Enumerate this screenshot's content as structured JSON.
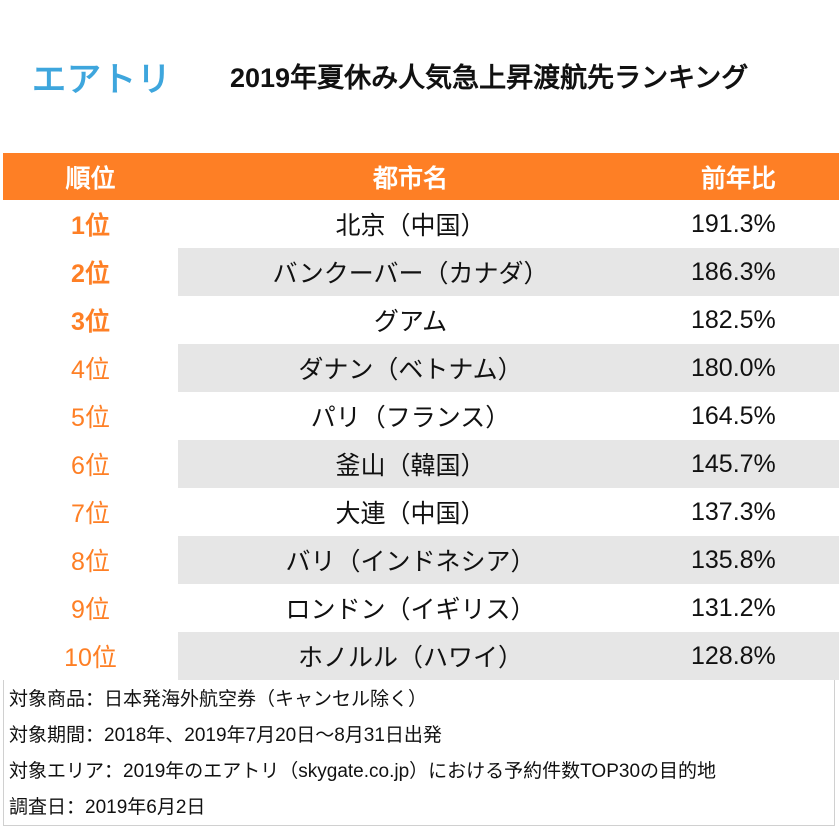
{
  "logo": "エアトリ",
  "title": "2019年夏休み人気急上昇渡航先ランキング",
  "colors": {
    "accent": "#fe7f25",
    "logo": "#3ea6dd",
    "stripe": "#e6e6e6"
  },
  "table": {
    "headers": [
      "順位",
      "都市名",
      "前年比"
    ],
    "rows": [
      {
        "rank": "1位",
        "city": "北京（中国）",
        "ratio": "191.3%"
      },
      {
        "rank": "2位",
        "city": "バンクーバー（カナダ）",
        "ratio": "186.3%"
      },
      {
        "rank": "3位",
        "city": "グアム",
        "ratio": "182.5%"
      },
      {
        "rank": "4位",
        "city": "ダナン（ベトナム）",
        "ratio": "180.0%"
      },
      {
        "rank": "5位",
        "city": "パリ（フランス）",
        "ratio": "164.5%"
      },
      {
        "rank": "6位",
        "city": "釜山（韓国）",
        "ratio": "145.7%"
      },
      {
        "rank": "7位",
        "city": "大連（中国）",
        "ratio": "137.3%"
      },
      {
        "rank": "8位",
        "city": "バリ（インドネシア）",
        "ratio": "135.8%"
      },
      {
        "rank": "9位",
        "city": "ロンドン（イギリス）",
        "ratio": "131.2%"
      },
      {
        "rank": "10位",
        "city": "ホノルル（ハワイ）",
        "ratio": "128.8%"
      }
    ]
  },
  "notes": [
    "対象商品：日本発海外航空券（キャンセル除く）",
    "対象期間：2018年、2019年7月20日～8月31日出発",
    "対象エリア：2019年のエアトリ（skygate.co.jp）における予約件数TOP30の目的地",
    "調査日：2019年6月2日"
  ]
}
